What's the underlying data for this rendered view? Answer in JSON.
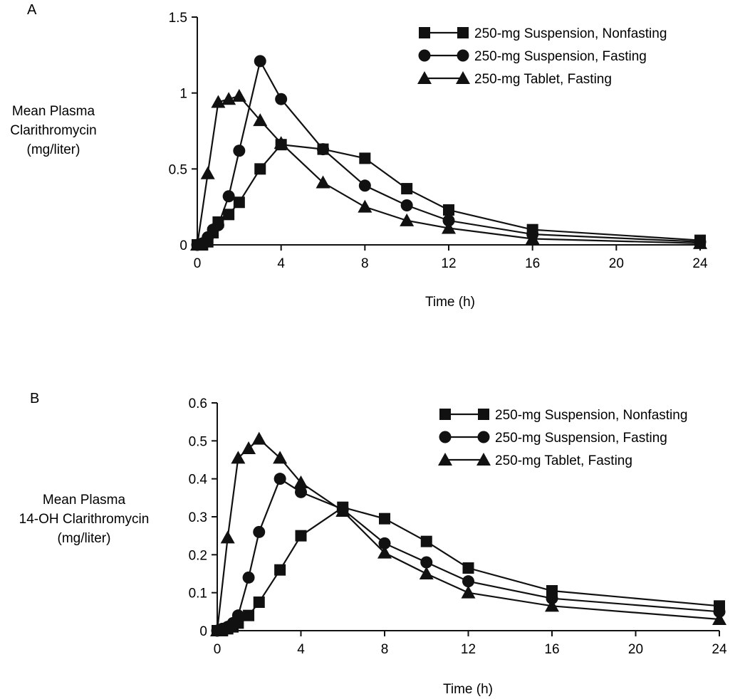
{
  "chart_data": [
    {
      "type": "line",
      "panel_label": "A",
      "title": "",
      "xlabel": "Time (h)",
      "ylabel": [
        "Mean Plasma",
        "Clarithromycin",
        "(mg/liter)"
      ],
      "xlim": [
        0,
        24
      ],
      "ylim": [
        0,
        1.5
      ],
      "xticks": [
        0,
        4,
        8,
        12,
        16,
        20,
        24
      ],
      "xtick_labels": [
        "0",
        "4",
        "8",
        "12",
        "16",
        "20",
        "24"
      ],
      "yticks": [
        0,
        0.5,
        1,
        1.5
      ],
      "ytick_labels": [
        "0",
        "0.5",
        "1",
        "1.5"
      ],
      "grid": false,
      "legend_position": "top-right",
      "series": [
        {
          "name": "250-mg Suspension, Nonfasting",
          "marker": "square",
          "x": [
            0,
            0.25,
            0.5,
            0.75,
            1,
            1.5,
            2,
            3,
            4,
            6,
            8,
            10,
            12,
            16,
            24
          ],
          "y": [
            0,
            0,
            0.02,
            0.08,
            0.15,
            0.2,
            0.28,
            0.5,
            0.66,
            0.63,
            0.57,
            0.37,
            0.23,
            0.1,
            0.03
          ]
        },
        {
          "name": "250-mg Suspension, Fasting",
          "marker": "circle",
          "x": [
            0,
            0.25,
            0.5,
            0.75,
            1,
            1.5,
            2,
            3,
            4,
            6,
            8,
            10,
            12,
            16,
            24
          ],
          "y": [
            0,
            0.01,
            0.05,
            0.1,
            0.13,
            0.32,
            0.62,
            1.21,
            0.96,
            0.63,
            0.39,
            0.26,
            0.16,
            0.07,
            0.02
          ]
        },
        {
          "name": "250-mg Tablet, Fasting",
          "marker": "triangle",
          "x": [
            0,
            0.5,
            1,
            1.5,
            2,
            3,
            4,
            6,
            8,
            10,
            12,
            16,
            24
          ],
          "y": [
            0,
            0.47,
            0.94,
            0.96,
            0.98,
            0.82,
            0.67,
            0.41,
            0.25,
            0.16,
            0.11,
            0.04,
            0.01
          ]
        }
      ]
    },
    {
      "type": "line",
      "panel_label": "B",
      "title": "",
      "xlabel": "Time (h)",
      "ylabel": [
        "Mean Plasma",
        "14-OH Clarithromycin",
        "(mg/liter)"
      ],
      "xlim": [
        0,
        24
      ],
      "ylim": [
        0,
        0.6
      ],
      "xticks": [
        0,
        4,
        8,
        12,
        16,
        20,
        24
      ],
      "xtick_labels": [
        "0",
        "4",
        "8",
        "12",
        "16",
        "20",
        "24"
      ],
      "yticks": [
        0,
        0.1,
        0.2,
        0.3,
        0.4,
        0.5,
        0.6
      ],
      "ytick_labels": [
        "0",
        "0.1",
        "0.2",
        "0.3",
        "0.4",
        "0.5",
        "0.6"
      ],
      "grid": false,
      "legend_position": "top-right",
      "series": [
        {
          "name": "250-mg Suspension, Nonfasting",
          "marker": "square",
          "x": [
            0,
            0.25,
            0.5,
            0.75,
            1,
            1.5,
            2,
            3,
            4,
            6,
            8,
            10,
            12,
            16,
            24
          ],
          "y": [
            0,
            0,
            0.005,
            0.01,
            0.02,
            0.04,
            0.075,
            0.16,
            0.25,
            0.325,
            0.295,
            0.235,
            0.165,
            0.105,
            0.065
          ]
        },
        {
          "name": "250-mg Suspension, Fasting",
          "marker": "circle",
          "x": [
            0,
            0.25,
            0.5,
            0.75,
            1,
            1.5,
            2,
            3,
            4,
            6,
            8,
            10,
            12,
            16,
            24
          ],
          "y": [
            0,
            0.005,
            0.01,
            0.02,
            0.04,
            0.14,
            0.26,
            0.4,
            0.365,
            0.32,
            0.23,
            0.18,
            0.13,
            0.085,
            0.05
          ]
        },
        {
          "name": "250-mg Tablet, Fasting",
          "marker": "triangle",
          "x": [
            0,
            0.5,
            1,
            1.5,
            2,
            3,
            4,
            6,
            8,
            10,
            12,
            16,
            24
          ],
          "y": [
            0,
            0.245,
            0.455,
            0.48,
            0.505,
            0.455,
            0.39,
            0.315,
            0.205,
            0.15,
            0.1,
            0.065,
            0.03
          ]
        }
      ]
    }
  ]
}
